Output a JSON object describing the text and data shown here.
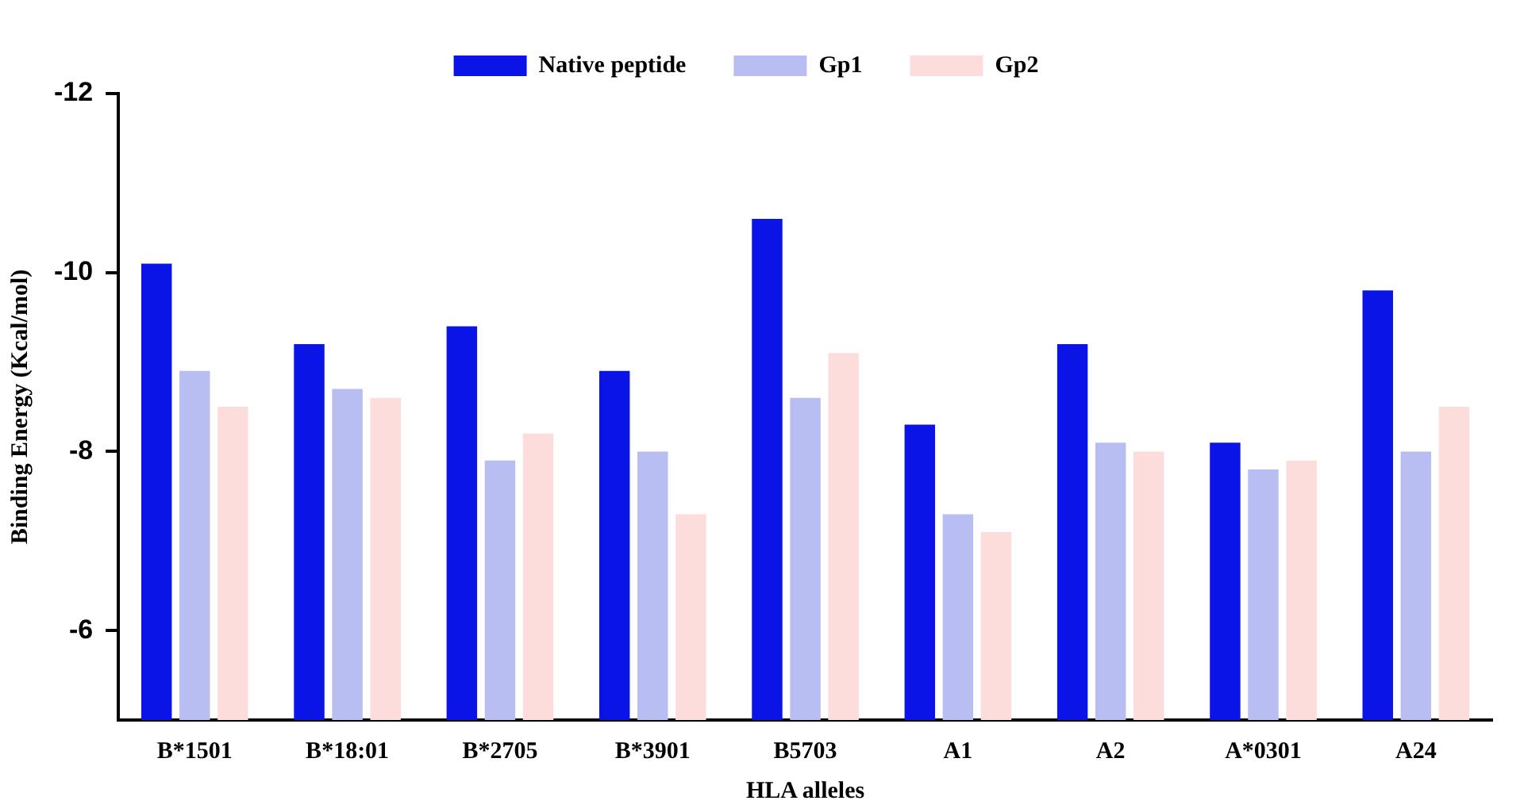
{
  "chart_data": {
    "type": "bar",
    "xlabel": "HLA alleles",
    "ylabel": "Binding Energy (Kcal/mol)",
    "categories": [
      "B*1501",
      "B*18:01",
      "B*2705",
      "B*3901",
      "B5703",
      "A1",
      "A2",
      "A*0301",
      "A24"
    ],
    "series": [
      {
        "name": "Native peptide",
        "color": "#0a14e6",
        "values": [
          -10.1,
          -9.2,
          -9.4,
          -8.9,
          -10.6,
          -8.3,
          -9.2,
          -8.1,
          -9.8
        ]
      },
      {
        "name": "Gp1",
        "color": "#b8bdf2",
        "values": [
          -8.9,
          -8.7,
          -7.9,
          -8.0,
          -8.6,
          -7.3,
          -8.1,
          -7.8,
          -8.0
        ]
      },
      {
        "name": "Gp2",
        "color": "#fddcdc",
        "values": [
          -8.5,
          -8.6,
          -8.2,
          -7.3,
          -9.1,
          -7.1,
          -8.0,
          -7.9,
          -8.5
        ]
      }
    ],
    "ylim": [
      -5,
      -12
    ],
    "yticks": [
      -12,
      -10,
      -8,
      -6
    ],
    "grid": false,
    "legend": "top"
  }
}
